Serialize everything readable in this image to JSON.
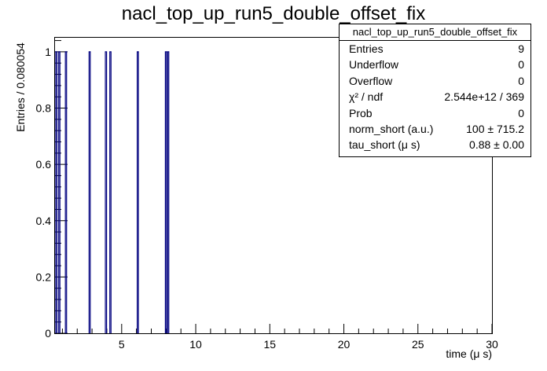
{
  "chart_data": {
    "type": "histogram",
    "title": "nacl_top_up_run5_double_offset_fix",
    "xlabel": "time (μ s)",
    "ylabel": "Entries / 0.080054",
    "xlim": [
      0.5,
      30
    ],
    "ylim": [
      0,
      1.05
    ],
    "x_ticks": [
      5,
      10,
      15,
      20,
      25,
      30
    ],
    "y_ticks": [
      0,
      0.2,
      0.4,
      0.6,
      0.8,
      1
    ],
    "bin_width": 0.080054,
    "bins": [
      {
        "x": 0.55,
        "value": 1
      },
      {
        "x": 0.75,
        "value": 1
      },
      {
        "x": 1.2,
        "value": 1
      },
      {
        "x": 2.8,
        "value": 1
      },
      {
        "x": 3.9,
        "value": 1
      },
      {
        "x": 4.2,
        "value": 1
      },
      {
        "x": 6.05,
        "value": 1
      },
      {
        "x": 7.95,
        "value": 1
      },
      {
        "x": 8.1,
        "value": 1
      }
    ],
    "line_color": "#00007f",
    "grid": false
  },
  "stats_box": {
    "title": "nacl_top_up_run5_double_offset_fix",
    "rows": [
      {
        "label": "Entries",
        "value": "9"
      },
      {
        "label": "Underflow",
        "value": "0"
      },
      {
        "label": "Overflow",
        "value": "0"
      },
      {
        "label": "χ² / ndf",
        "value": "2.544e+12 / 369"
      },
      {
        "label": "Prob",
        "value": "0"
      },
      {
        "label": "norm_short (a.u.)",
        "value": "100 ± 715.2"
      },
      {
        "label": "tau_short (μ s)",
        "value": "0.88 ± 0.00"
      }
    ]
  }
}
